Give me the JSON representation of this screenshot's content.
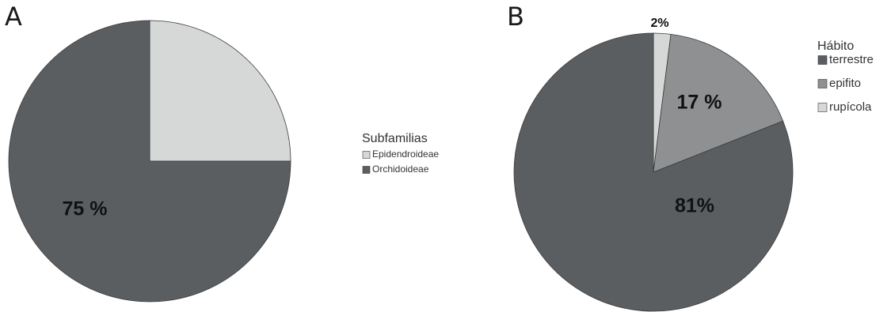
{
  "colors": {
    "dark": "#5b5e61",
    "medium": "#8e9091",
    "light": "#d6d7d7",
    "outline": "#3a3a3a"
  },
  "chart_data": [
    {
      "type": "pie",
      "panel_label": "A",
      "legend_title": "Subfamilias",
      "legend_placement": "right",
      "slices": [
        {
          "name": "Epidendroideae",
          "value": 25,
          "label": "25 %",
          "color": "#d6d7d7"
        },
        {
          "name": "Orchidoideae",
          "value": 75,
          "label": "75 %",
          "color": "#5b5e61"
        }
      ],
      "legend": [
        {
          "name": "Epidendroideae",
          "color": "#d6d7d7"
        },
        {
          "name": "Orchidoideae",
          "color": "#5b5e61"
        }
      ]
    },
    {
      "type": "pie",
      "panel_label": "B",
      "legend_title": "Hábito",
      "legend_placement": "top-right",
      "slices": [
        {
          "name": "rupícola",
          "value": 2,
          "label": "2%",
          "color": "#d6d7d7"
        },
        {
          "name": "epifito",
          "value": 17,
          "label": "17 %",
          "color": "#8e9091"
        },
        {
          "name": "terrestre",
          "value": 81,
          "label": "81%",
          "color": "#5b5e61"
        }
      ],
      "legend": [
        {
          "name": "terrestre",
          "color": "#5b5e61"
        },
        {
          "name": "epifito",
          "color": "#8e9091"
        },
        {
          "name": "rupícola",
          "color": "#d6d7d7"
        }
      ]
    }
  ]
}
